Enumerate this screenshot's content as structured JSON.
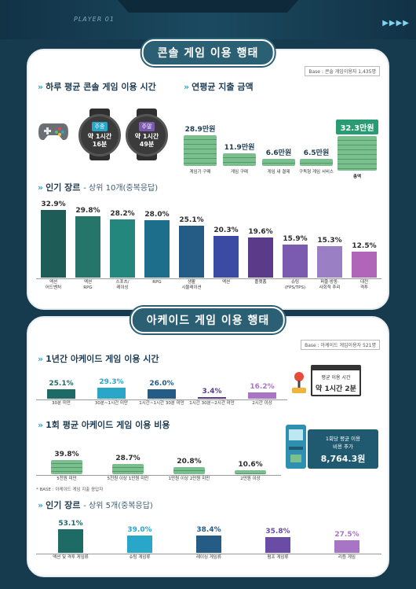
{
  "header": {
    "player_label": "PLAYER 01",
    "arrows": "▶▶▶▶"
  },
  "console": {
    "title": "콘솔 게임 이용 행태",
    "base": "Base : 콘솔 게임이용자 1,435명",
    "daily": {
      "heading": "하루 평균 콘솔 게임 이용 시간",
      "weekday": {
        "label": "주중",
        "value_line1": "약 1시간",
        "value_line2": "16분"
      },
      "weekend": {
        "label": "주말",
        "value_line1": "약 1시간",
        "value_line2": "49분"
      }
    },
    "spend": {
      "heading": "연평균 지출 금액",
      "items": [
        {
          "amount": "28.9만원",
          "label": "게임기 구매",
          "value": 28.9
        },
        {
          "amount": "11.9만원",
          "label": "게임 구매",
          "value": 11.9
        },
        {
          "amount": "6.6만원",
          "label": "게임 내 결제",
          "value": 6.6
        },
        {
          "amount": "6.5만원",
          "label": "구독형 게임 서비스",
          "value": 6.5
        },
        {
          "amount": "32.3만원",
          "label": "총액",
          "value": 32.3
        }
      ]
    },
    "genres": {
      "heading": "인기 장르",
      "heading_extra": "- 상위 10개(중복응답)",
      "items": [
        {
          "pct": "32.9%",
          "value": 32.9,
          "label": "액션\n어드벤처",
          "color": "#1e5c57"
        },
        {
          "pct": "29.8%",
          "value": 29.8,
          "label": "액션\nRPG",
          "color": "#26756b"
        },
        {
          "pct": "28.2%",
          "value": 28.2,
          "label": "스포츠/\n레이싱",
          "color": "#23877d"
        },
        {
          "pct": "28.0%",
          "value": 28.0,
          "label": "RPG",
          "color": "#1d6e8a"
        },
        {
          "pct": "25.1%",
          "value": 25.1,
          "label": "생활\n시뮬레이션",
          "color": "#245c86"
        },
        {
          "pct": "20.3%",
          "value": 20.3,
          "label": "액션",
          "color": "#3b4ba3"
        },
        {
          "pct": "19.6%",
          "value": 19.6,
          "label": "플랫폼",
          "color": "#5b3a8a"
        },
        {
          "pct": "15.9%",
          "value": 15.9,
          "label": "슈팅\n(FPS/TPS)",
          "color": "#7a5bb0"
        },
        {
          "pct": "15.3%",
          "value": 15.3,
          "label": "퍼즐·방동·\n사회적 추리",
          "color": "#9a7fc4"
        },
        {
          "pct": "12.5%",
          "value": 12.5,
          "label": "대전\n격투",
          "color": "#b165b8"
        }
      ]
    }
  },
  "arcade": {
    "title": "아케이드 게임 이용 행태",
    "base": "Base : 아케이드 게임이용자 521명",
    "time": {
      "heading": "1년간 아케이드 게임 이용 시간",
      "items": [
        {
          "pct": "25.1%",
          "value": 25.1,
          "label": "30분 미만",
          "color": "#1e6b66"
        },
        {
          "pct": "29.3%",
          "value": 29.3,
          "label": "30분~1시간 미만",
          "color": "#2aa6c9"
        },
        {
          "pct": "26.0%",
          "value": 26.0,
          "label": "1시간~1시간 30분 미만",
          "color": "#245c86"
        },
        {
          "pct": "3.4%",
          "value": 3.4,
          "label": "1시간 30분~2시간 미만",
          "color": "#5b3a8a"
        },
        {
          "pct": "16.2%",
          "value": 16.2,
          "label": "2시간 이상",
          "color": "#a875c6"
        }
      ],
      "avg_label": "평균 이용 시간",
      "avg_value": "약 1시간 2분"
    },
    "cost": {
      "heading": "1회 평균 아케이드 게임 이용 비용",
      "items": [
        {
          "pct": "39.8%",
          "value": 39.8,
          "label": "5천원 미만"
        },
        {
          "pct": "28.7%",
          "value": 28.7,
          "label": "5천원 이상 1만원 미만"
        },
        {
          "pct": "20.8%",
          "value": 20.8,
          "label": "1만원 이상 2만원 미만"
        },
        {
          "pct": "10.6%",
          "value": 10.6,
          "label": "2만원 이상"
        }
      ],
      "note": "* BASE : 아케이드 게임 지출 응답자",
      "badge_line1": "1회당 평균 이용",
      "badge_line2": "비용 추가",
      "badge_value": "8,764.3원"
    },
    "genres": {
      "heading": "인기 장르",
      "heading_extra": "- 상위 5개(중복응답)",
      "items": [
        {
          "pct": "53.1%",
          "value": 53.1,
          "label": "액션 및 격투 게임류",
          "color": "#1e6b66"
        },
        {
          "pct": "39.0%",
          "value": 39.0,
          "label": "슈팅 게임류",
          "color": "#2aa6c9"
        },
        {
          "pct": "38.4%",
          "value": 38.4,
          "label": "레이싱 게임류",
          "color": "#245c86"
        },
        {
          "pct": "35.8%",
          "value": 35.8,
          "label": "펌프 게임류",
          "color": "#6a4ca6"
        },
        {
          "pct": "27.5%",
          "value": 27.5,
          "label": "리듬 게임",
          "color": "#a875c6"
        }
      ]
    }
  }
}
